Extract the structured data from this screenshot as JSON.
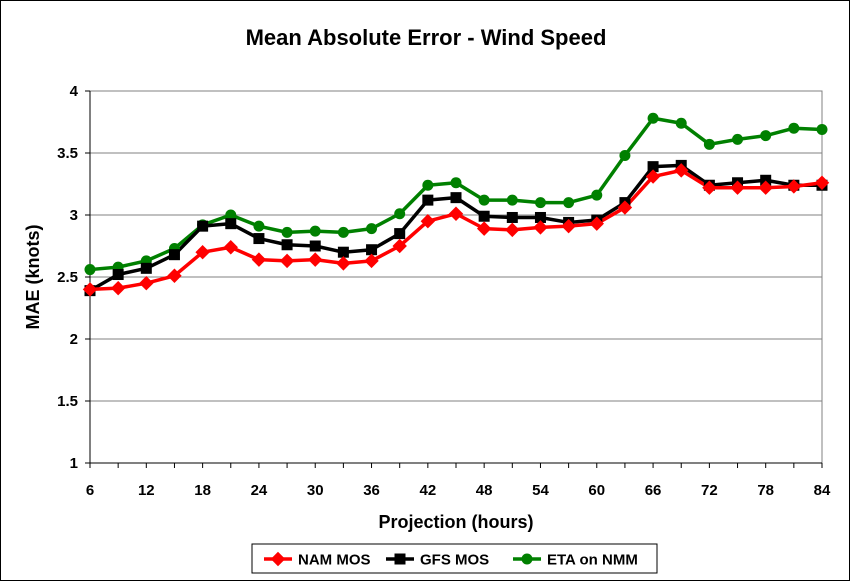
{
  "chart_data": {
    "type": "line",
    "title": "Mean Absolute Error - Wind Speed",
    "xlabel": "Projection (hours)",
    "ylabel": "MAE (knots)",
    "xlim": [
      6,
      84
    ],
    "ylim": [
      1,
      4
    ],
    "x_ticks": [
      "6",
      "12",
      "18",
      "24",
      "30",
      "36",
      "42",
      "48",
      "54",
      "60",
      "66",
      "72",
      "78",
      "84"
    ],
    "y_ticks": [
      "1",
      "1.5",
      "2",
      "2.5",
      "3",
      "3.5",
      "4"
    ],
    "grid": "horizontal",
    "legend_position": "bottom",
    "x": [
      6,
      9,
      12,
      15,
      18,
      21,
      24,
      27,
      30,
      33,
      36,
      39,
      42,
      45,
      48,
      51,
      54,
      57,
      60,
      63,
      66,
      69,
      72,
      75,
      78,
      81,
      84
    ],
    "series": [
      {
        "name": "NAM MOS",
        "color": "#ff0000",
        "marker": "diamond",
        "values": [
          2.4,
          2.41,
          2.45,
          2.51,
          2.7,
          2.74,
          2.64,
          2.63,
          2.64,
          2.61,
          2.63,
          2.75,
          2.95,
          3.01,
          2.89,
          2.88,
          2.9,
          2.91,
          2.93,
          3.06,
          3.31,
          3.36,
          3.22,
          3.22,
          3.22,
          3.23,
          3.26
        ]
      },
      {
        "name": "GFS MOS",
        "color": "#000000",
        "marker": "square",
        "values": [
          2.39,
          2.52,
          2.57,
          2.68,
          2.91,
          2.93,
          2.81,
          2.76,
          2.75,
          2.7,
          2.72,
          2.85,
          3.12,
          3.14,
          2.99,
          2.98,
          2.98,
          2.94,
          2.96,
          3.1,
          3.39,
          3.4,
          3.24,
          3.26,
          3.28,
          3.24,
          3.24
        ]
      },
      {
        "name": "ETA on NMM",
        "color": "#008000",
        "marker": "circle",
        "values": [
          2.56,
          2.58,
          2.63,
          2.73,
          2.92,
          3.0,
          2.91,
          2.86,
          2.87,
          2.86,
          2.89,
          3.01,
          3.24,
          3.26,
          3.12,
          3.12,
          3.1,
          3.1,
          3.16,
          3.48,
          3.78,
          3.74,
          3.57,
          3.61,
          3.64,
          3.7,
          3.69
        ]
      }
    ]
  }
}
